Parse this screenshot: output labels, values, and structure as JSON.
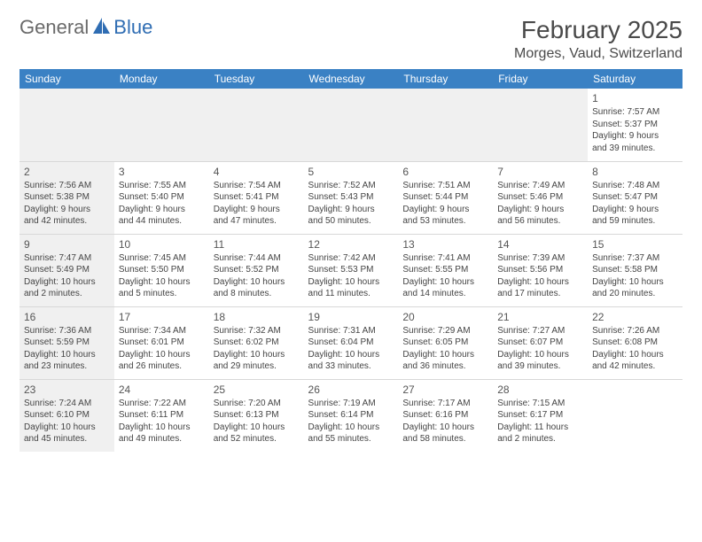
{
  "logo": {
    "text1": "General",
    "text2": "Blue"
  },
  "title": "February 2025",
  "location": "Morges, Vaud, Switzerland",
  "colors": {
    "header_bg": "#3a81c4",
    "header_text": "#ffffff",
    "logo_gray": "#6a6a6a",
    "logo_blue": "#2f6db3",
    "shade": "#f0f0f0",
    "border": "#d8d8d8",
    "text": "#444444"
  },
  "fonts": {
    "title_size": 28,
    "location_size": 16,
    "header_size": 12,
    "daynum_size": 12,
    "cell_size": 10
  },
  "day_headers": [
    "Sunday",
    "Monday",
    "Tuesday",
    "Wednesday",
    "Thursday",
    "Friday",
    "Saturday"
  ],
  "weeks": [
    [
      {
        "n": "",
        "sr": "",
        "ss": "",
        "dl1": "",
        "dl2": "",
        "shade": true
      },
      {
        "n": "",
        "sr": "",
        "ss": "",
        "dl1": "",
        "dl2": ""
      },
      {
        "n": "",
        "sr": "",
        "ss": "",
        "dl1": "",
        "dl2": ""
      },
      {
        "n": "",
        "sr": "",
        "ss": "",
        "dl1": "",
        "dl2": ""
      },
      {
        "n": "",
        "sr": "",
        "ss": "",
        "dl1": "",
        "dl2": ""
      },
      {
        "n": "",
        "sr": "",
        "ss": "",
        "dl1": "",
        "dl2": ""
      },
      {
        "n": "1",
        "sr": "Sunrise: 7:57 AM",
        "ss": "Sunset: 5:37 PM",
        "dl1": "Daylight: 9 hours",
        "dl2": "and 39 minutes."
      }
    ],
    [
      {
        "n": "2",
        "sr": "Sunrise: 7:56 AM",
        "ss": "Sunset: 5:38 PM",
        "dl1": "Daylight: 9 hours",
        "dl2": "and 42 minutes.",
        "shade": true
      },
      {
        "n": "3",
        "sr": "Sunrise: 7:55 AM",
        "ss": "Sunset: 5:40 PM",
        "dl1": "Daylight: 9 hours",
        "dl2": "and 44 minutes."
      },
      {
        "n": "4",
        "sr": "Sunrise: 7:54 AM",
        "ss": "Sunset: 5:41 PM",
        "dl1": "Daylight: 9 hours",
        "dl2": "and 47 minutes."
      },
      {
        "n": "5",
        "sr": "Sunrise: 7:52 AM",
        "ss": "Sunset: 5:43 PM",
        "dl1": "Daylight: 9 hours",
        "dl2": "and 50 minutes."
      },
      {
        "n": "6",
        "sr": "Sunrise: 7:51 AM",
        "ss": "Sunset: 5:44 PM",
        "dl1": "Daylight: 9 hours",
        "dl2": "and 53 minutes."
      },
      {
        "n": "7",
        "sr": "Sunrise: 7:49 AM",
        "ss": "Sunset: 5:46 PM",
        "dl1": "Daylight: 9 hours",
        "dl2": "and 56 minutes."
      },
      {
        "n": "8",
        "sr": "Sunrise: 7:48 AM",
        "ss": "Sunset: 5:47 PM",
        "dl1": "Daylight: 9 hours",
        "dl2": "and 59 minutes."
      }
    ],
    [
      {
        "n": "9",
        "sr": "Sunrise: 7:47 AM",
        "ss": "Sunset: 5:49 PM",
        "dl1": "Daylight: 10 hours",
        "dl2": "and 2 minutes.",
        "shade": true
      },
      {
        "n": "10",
        "sr": "Sunrise: 7:45 AM",
        "ss": "Sunset: 5:50 PM",
        "dl1": "Daylight: 10 hours",
        "dl2": "and 5 minutes."
      },
      {
        "n": "11",
        "sr": "Sunrise: 7:44 AM",
        "ss": "Sunset: 5:52 PM",
        "dl1": "Daylight: 10 hours",
        "dl2": "and 8 minutes."
      },
      {
        "n": "12",
        "sr": "Sunrise: 7:42 AM",
        "ss": "Sunset: 5:53 PM",
        "dl1": "Daylight: 10 hours",
        "dl2": "and 11 minutes."
      },
      {
        "n": "13",
        "sr": "Sunrise: 7:41 AM",
        "ss": "Sunset: 5:55 PM",
        "dl1": "Daylight: 10 hours",
        "dl2": "and 14 minutes."
      },
      {
        "n": "14",
        "sr": "Sunrise: 7:39 AM",
        "ss": "Sunset: 5:56 PM",
        "dl1": "Daylight: 10 hours",
        "dl2": "and 17 minutes."
      },
      {
        "n": "15",
        "sr": "Sunrise: 7:37 AM",
        "ss": "Sunset: 5:58 PM",
        "dl1": "Daylight: 10 hours",
        "dl2": "and 20 minutes."
      }
    ],
    [
      {
        "n": "16",
        "sr": "Sunrise: 7:36 AM",
        "ss": "Sunset: 5:59 PM",
        "dl1": "Daylight: 10 hours",
        "dl2": "and 23 minutes.",
        "shade": true
      },
      {
        "n": "17",
        "sr": "Sunrise: 7:34 AM",
        "ss": "Sunset: 6:01 PM",
        "dl1": "Daylight: 10 hours",
        "dl2": "and 26 minutes."
      },
      {
        "n": "18",
        "sr": "Sunrise: 7:32 AM",
        "ss": "Sunset: 6:02 PM",
        "dl1": "Daylight: 10 hours",
        "dl2": "and 29 minutes."
      },
      {
        "n": "19",
        "sr": "Sunrise: 7:31 AM",
        "ss": "Sunset: 6:04 PM",
        "dl1": "Daylight: 10 hours",
        "dl2": "and 33 minutes."
      },
      {
        "n": "20",
        "sr": "Sunrise: 7:29 AM",
        "ss": "Sunset: 6:05 PM",
        "dl1": "Daylight: 10 hours",
        "dl2": "and 36 minutes."
      },
      {
        "n": "21",
        "sr": "Sunrise: 7:27 AM",
        "ss": "Sunset: 6:07 PM",
        "dl1": "Daylight: 10 hours",
        "dl2": "and 39 minutes."
      },
      {
        "n": "22",
        "sr": "Sunrise: 7:26 AM",
        "ss": "Sunset: 6:08 PM",
        "dl1": "Daylight: 10 hours",
        "dl2": "and 42 minutes."
      }
    ],
    [
      {
        "n": "23",
        "sr": "Sunrise: 7:24 AM",
        "ss": "Sunset: 6:10 PM",
        "dl1": "Daylight: 10 hours",
        "dl2": "and 45 minutes.",
        "shade": true
      },
      {
        "n": "24",
        "sr": "Sunrise: 7:22 AM",
        "ss": "Sunset: 6:11 PM",
        "dl1": "Daylight: 10 hours",
        "dl2": "and 49 minutes."
      },
      {
        "n": "25",
        "sr": "Sunrise: 7:20 AM",
        "ss": "Sunset: 6:13 PM",
        "dl1": "Daylight: 10 hours",
        "dl2": "and 52 minutes."
      },
      {
        "n": "26",
        "sr": "Sunrise: 7:19 AM",
        "ss": "Sunset: 6:14 PM",
        "dl1": "Daylight: 10 hours",
        "dl2": "and 55 minutes."
      },
      {
        "n": "27",
        "sr": "Sunrise: 7:17 AM",
        "ss": "Sunset: 6:16 PM",
        "dl1": "Daylight: 10 hours",
        "dl2": "and 58 minutes."
      },
      {
        "n": "28",
        "sr": "Sunrise: 7:15 AM",
        "ss": "Sunset: 6:17 PM",
        "dl1": "Daylight: 11 hours",
        "dl2": "and 2 minutes."
      },
      {
        "n": "",
        "sr": "",
        "ss": "",
        "dl1": "",
        "dl2": ""
      }
    ]
  ]
}
